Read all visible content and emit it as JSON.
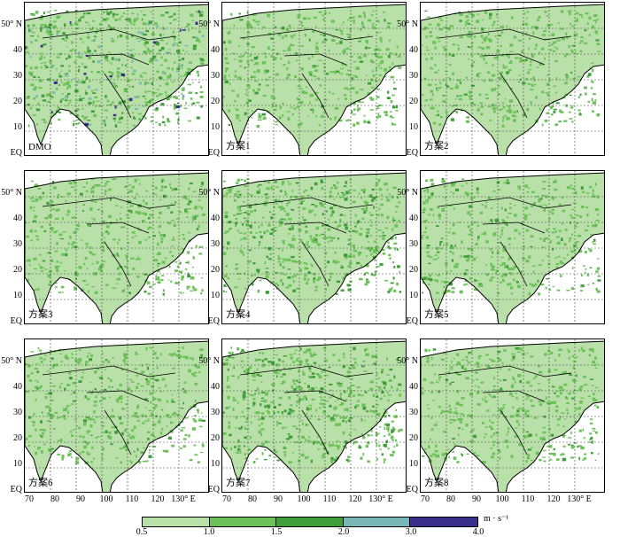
{
  "panels": [
    {
      "label": "DMO",
      "variant": "dmo"
    },
    {
      "label": "方案1",
      "variant": "light"
    },
    {
      "label": "方案2",
      "variant": "light"
    },
    {
      "label": "方案3",
      "variant": "light"
    },
    {
      "label": "方案4",
      "variant": "mid"
    },
    {
      "label": "方案5",
      "variant": "light"
    },
    {
      "label": "方案6",
      "variant": "light"
    },
    {
      "label": "方案7",
      "variant": "mid"
    },
    {
      "label": "方案8",
      "variant": "light"
    }
  ],
  "lat_ticks": [
    "50° N",
    "40",
    "30",
    "20",
    "10",
    "EQ"
  ],
  "lon_ticks": [
    "70",
    "80",
    "90",
    "100",
    "110",
    "120",
    "130° E"
  ],
  "colorbar": {
    "ticks": [
      "0.5",
      "1.0",
      "1.5",
      "2.0",
      "3.0",
      "4.0"
    ],
    "unit": "m · s⁻¹",
    "colors": [
      "#b8e0a8",
      "#6cc158",
      "#3f9e3a",
      "#79b7b6",
      "#3a2f8a"
    ]
  }
}
